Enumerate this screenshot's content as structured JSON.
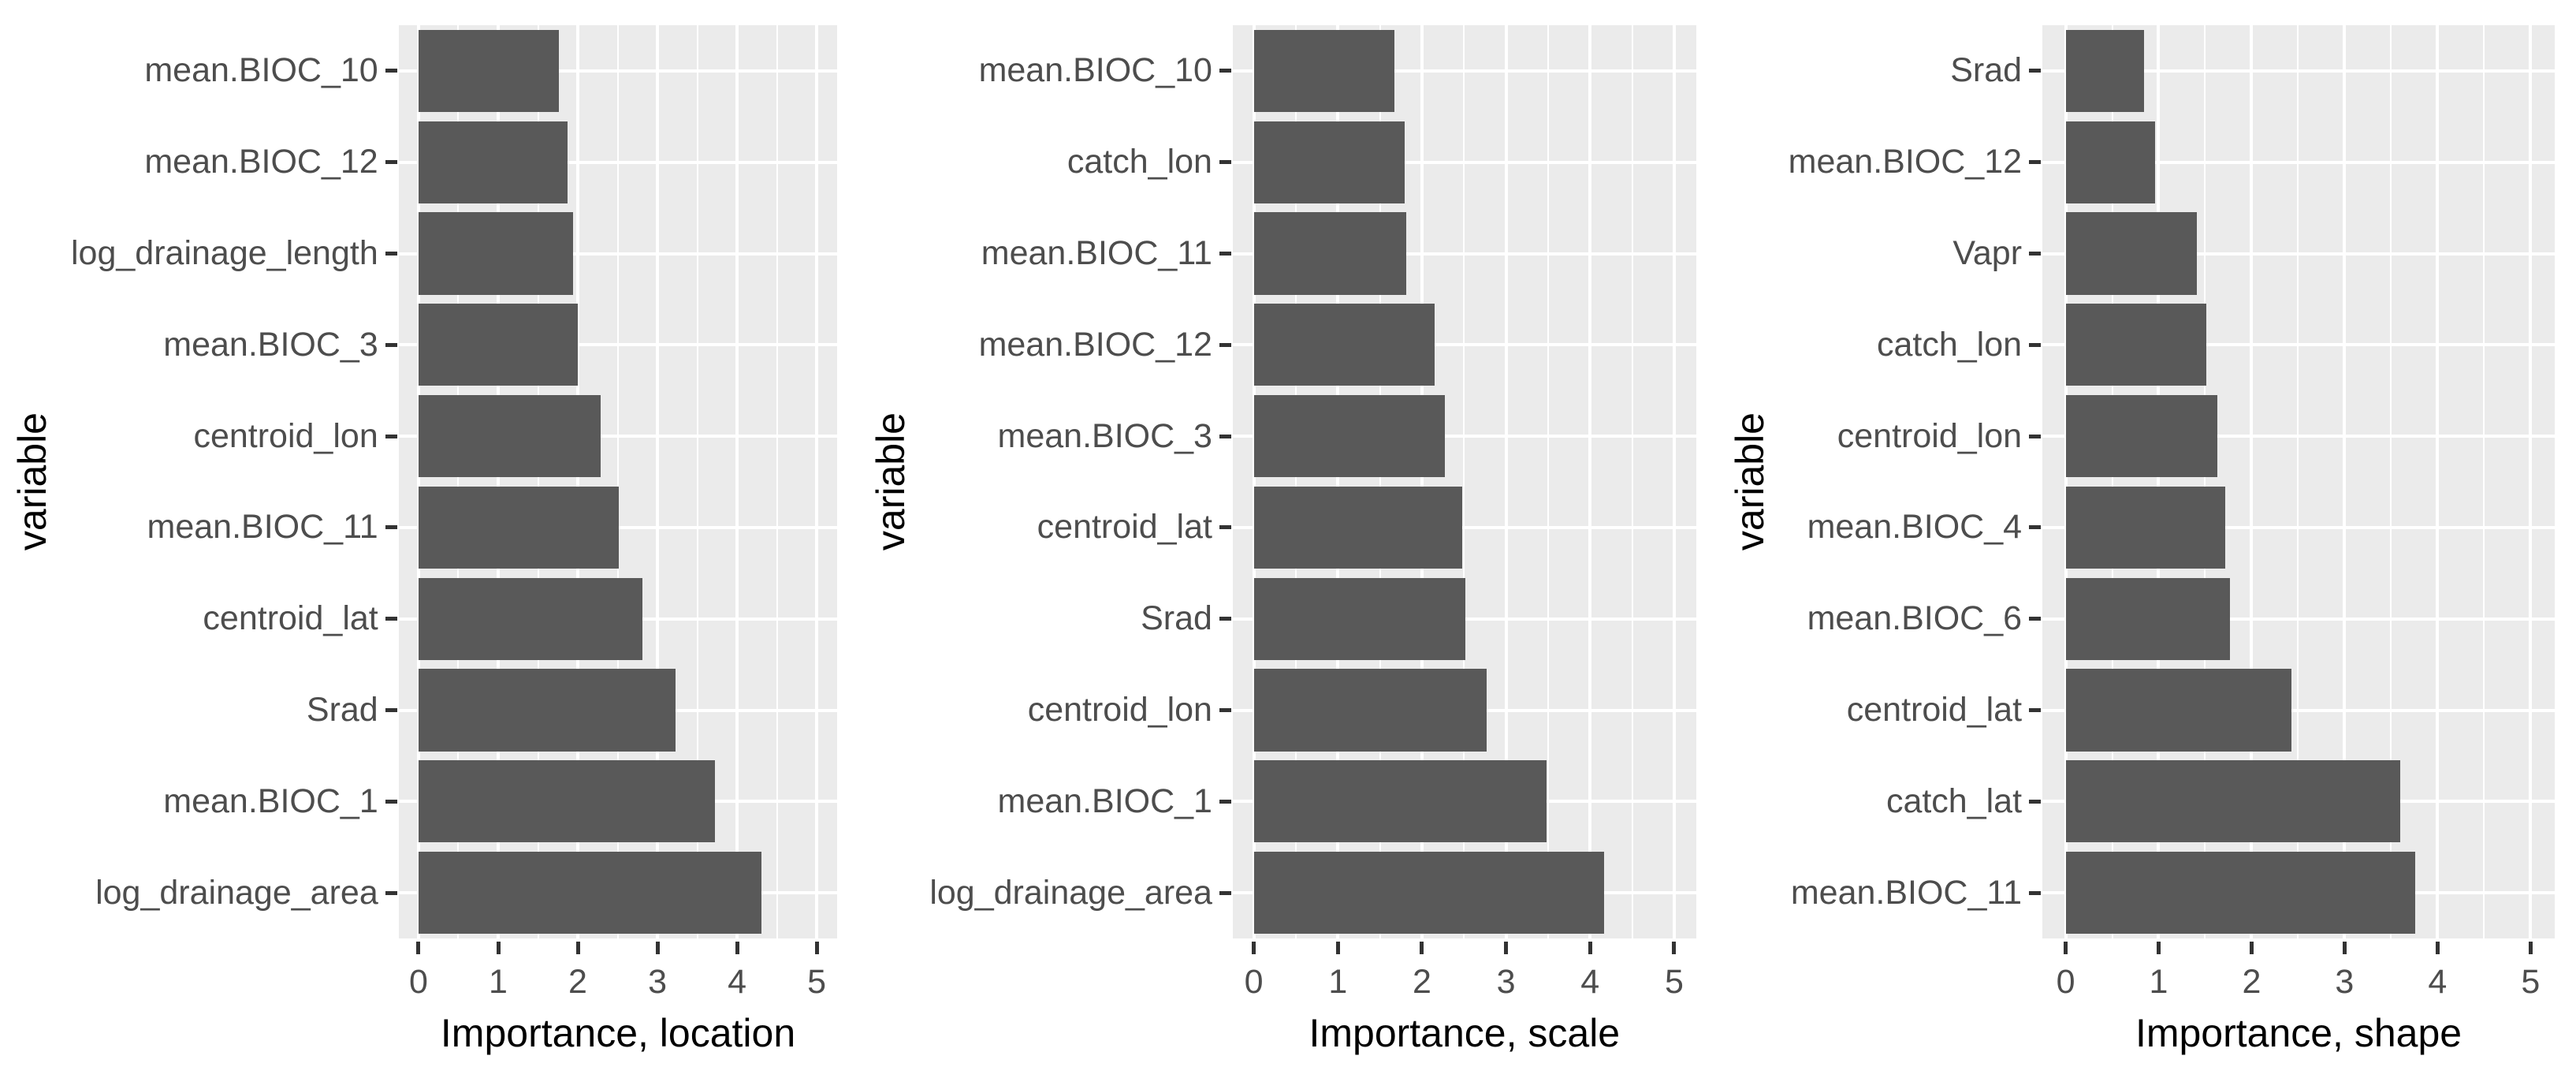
{
  "figure": {
    "y_axis_title": "variable",
    "x_tick_labels": [
      "0",
      "1",
      "2",
      "3",
      "4",
      "5"
    ],
    "x_domain": {
      "min": -0.25,
      "max": 5.26
    },
    "colors": {
      "bar": "#595959",
      "panel_background": "#EBEBEB",
      "gridline": "#FFFFFF",
      "axis_text": "#4D4D4D",
      "axis_title": "#000000",
      "tick_mark": "#333333",
      "page_background": "#FFFFFF"
    }
  },
  "chart_data": [
    {
      "type": "bar",
      "orientation": "horizontal",
      "title": "",
      "xlabel": "Importance, location",
      "ylabel": "variable",
      "xlim": [
        0,
        5
      ],
      "xticks": [
        0,
        1,
        2,
        3,
        4,
        5
      ],
      "grid": "on",
      "legend": "none",
      "categories": [
        "mean.BIOC_10",
        "mean.BIOC_12",
        "log_drainage_length",
        "mean.BIOC_3",
        "centroid_lon",
        "mean.BIOC_11",
        "centroid_lat",
        "Srad",
        "mean.BIOC_1",
        "log_drainage_area"
      ],
      "values": [
        1.76,
        1.87,
        1.94,
        2.0,
        2.29,
        2.51,
        2.81,
        3.23,
        3.72,
        4.31
      ]
    },
    {
      "type": "bar",
      "orientation": "horizontal",
      "title": "",
      "xlabel": "Importance, scale",
      "ylabel": "variable",
      "xlim": [
        0,
        5
      ],
      "xticks": [
        0,
        1,
        2,
        3,
        4,
        5
      ],
      "grid": "on",
      "legend": "none",
      "categories": [
        "mean.BIOC_10",
        "catch_lon",
        "mean.BIOC_11",
        "mean.BIOC_12",
        "mean.BIOC_3",
        "centroid_lat",
        "Srad",
        "centroid_lon",
        "mean.BIOC_1",
        "log_drainage_area"
      ],
      "values": [
        1.67,
        1.79,
        1.81,
        2.15,
        2.27,
        2.48,
        2.52,
        2.77,
        3.48,
        4.17
      ]
    },
    {
      "type": "bar",
      "orientation": "horizontal",
      "title": "",
      "xlabel": "Importance, shape",
      "ylabel": "variable",
      "xlim": [
        0,
        5
      ],
      "xticks": [
        0,
        1,
        2,
        3,
        4,
        5
      ],
      "grid": "on",
      "legend": "none",
      "categories": [
        "Srad",
        "mean.BIOC_12",
        "Vapr",
        "catch_lon",
        "centroid_lon",
        "mean.BIOC_4",
        "mean.BIOC_6",
        "centroid_lat",
        "catch_lat",
        "mean.BIOC_11"
      ],
      "values": [
        0.84,
        0.96,
        1.41,
        1.51,
        1.63,
        1.72,
        1.77,
        2.43,
        3.6,
        3.76
      ]
    }
  ]
}
